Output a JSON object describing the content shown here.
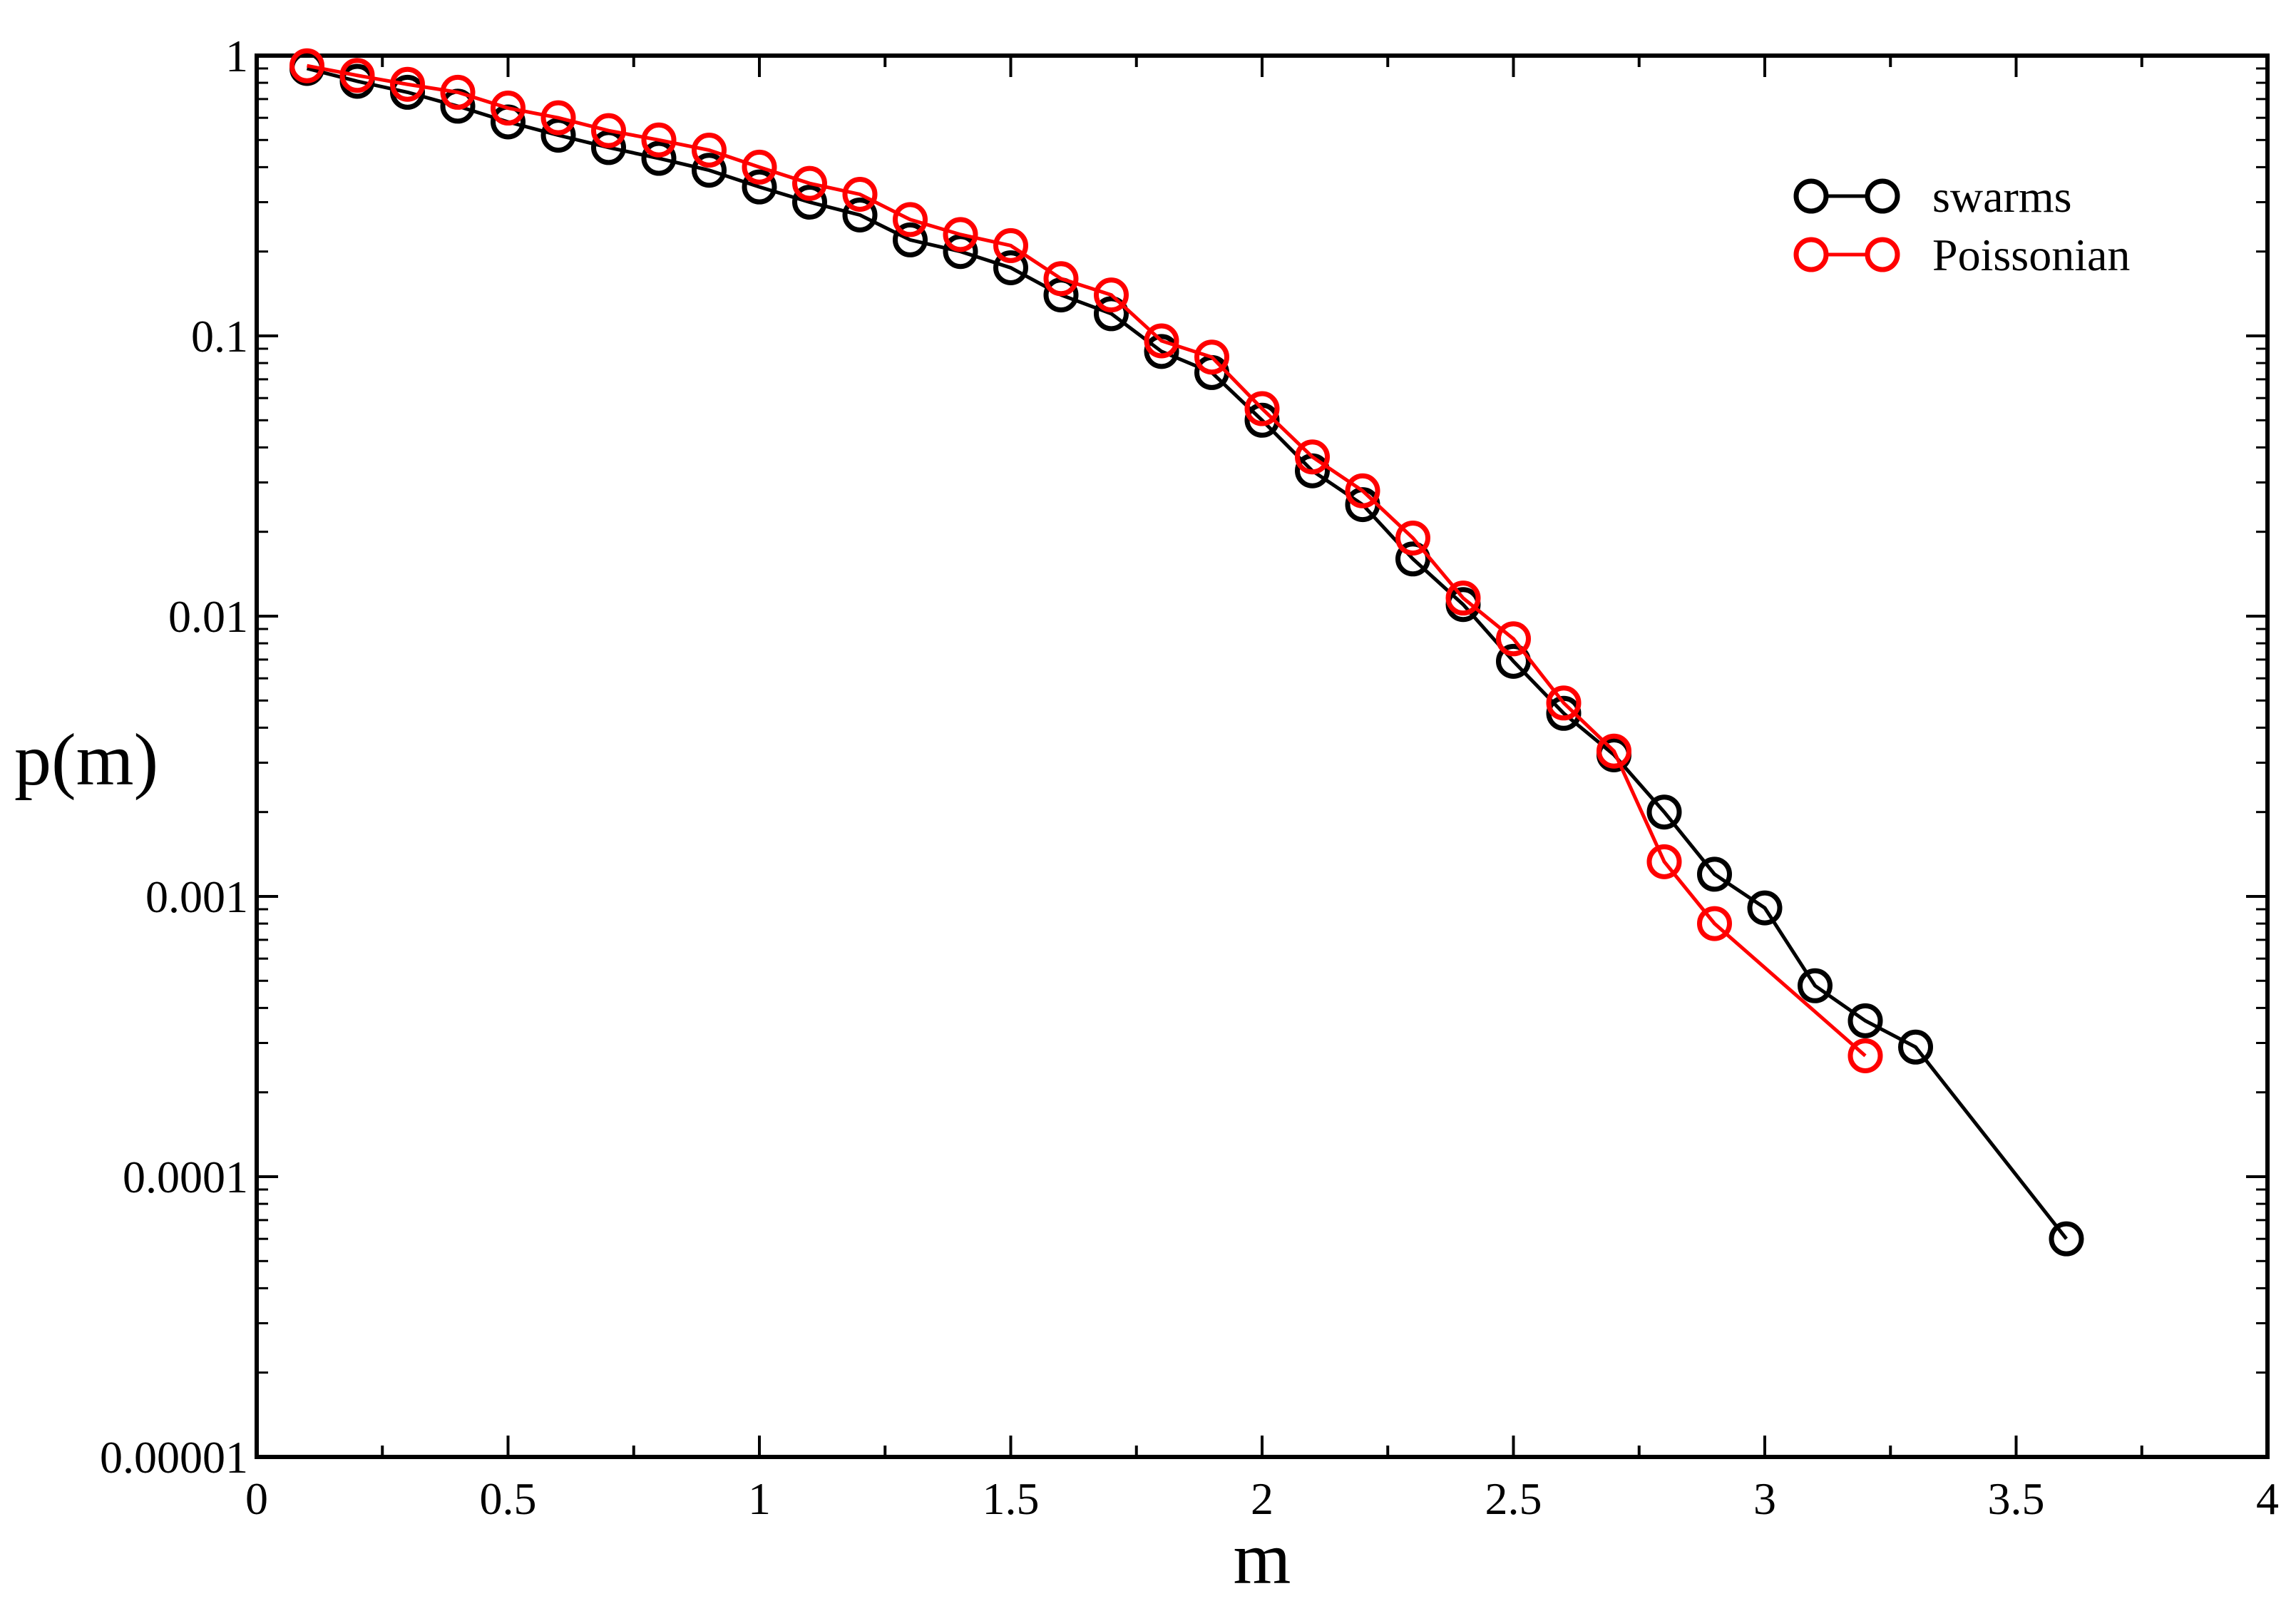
{
  "chart_data": {
    "type": "scatter",
    "title": "",
    "xlabel": "m",
    "ylabel": "p(m)",
    "xlim": [
      0,
      4
    ],
    "ylim": [
      1e-05,
      1
    ],
    "yscale": "log",
    "x_ticks": [
      "0",
      "0.5",
      "1",
      "1.5",
      "2",
      "2.5",
      "3",
      "3.5",
      "4"
    ],
    "x_tick_values": [
      0,
      0.5,
      1,
      1.5,
      2,
      2.5,
      3,
      3.5,
      4
    ],
    "y_ticks": [
      "1",
      "0.1",
      "0.01",
      "0.001",
      "0.0001",
      "0.00001"
    ],
    "y_tick_values": [
      1,
      0.1,
      0.01,
      0.001,
      0.0001,
      1e-05
    ],
    "grid": false,
    "legend_position": "top-right",
    "series": [
      {
        "name": "swarms",
        "color": "#000000",
        "marker": "open-circle",
        "points": [
          [
            0.1,
            0.9
          ],
          [
            0.2,
            0.81
          ],
          [
            0.3,
            0.74
          ],
          [
            0.4,
            0.66
          ],
          [
            0.5,
            0.58
          ],
          [
            0.6,
            0.52
          ],
          [
            0.7,
            0.47
          ],
          [
            0.8,
            0.43
          ],
          [
            0.9,
            0.39
          ],
          [
            1.0,
            0.34
          ],
          [
            1.1,
            0.3
          ],
          [
            1.2,
            0.27
          ],
          [
            1.3,
            0.22
          ],
          [
            1.4,
            0.2
          ],
          [
            1.5,
            0.175
          ],
          [
            1.6,
            0.14
          ],
          [
            1.7,
            0.12
          ],
          [
            1.8,
            0.088
          ],
          [
            1.9,
            0.074
          ],
          [
            2.0,
            0.05
          ],
          [
            2.1,
            0.033
          ],
          [
            2.2,
            0.025
          ],
          [
            2.3,
            0.016
          ],
          [
            2.4,
            0.011
          ],
          [
            2.5,
            0.0069
          ],
          [
            2.6,
            0.0045
          ],
          [
            2.7,
            0.0032
          ],
          [
            2.8,
            0.002
          ],
          [
            2.9,
            0.0012
          ],
          [
            3.0,
            0.00091
          ],
          [
            3.1,
            0.00048
          ],
          [
            3.2,
            0.00036
          ],
          [
            3.3,
            0.00029
          ],
          [
            3.6,
            6e-05
          ]
        ]
      },
      {
        "name": "Poissonian",
        "color": "#ff0000",
        "marker": "open-circle",
        "points": [
          [
            0.1,
            0.92
          ],
          [
            0.2,
            0.85
          ],
          [
            0.3,
            0.79
          ],
          [
            0.4,
            0.74
          ],
          [
            0.5,
            0.65
          ],
          [
            0.6,
            0.6
          ],
          [
            0.7,
            0.54
          ],
          [
            0.8,
            0.5
          ],
          [
            0.9,
            0.46
          ],
          [
            1.0,
            0.4
          ],
          [
            1.1,
            0.35
          ],
          [
            1.2,
            0.32
          ],
          [
            1.3,
            0.26
          ],
          [
            1.4,
            0.23
          ],
          [
            1.5,
            0.21
          ],
          [
            1.6,
            0.16
          ],
          [
            1.7,
            0.14
          ],
          [
            1.8,
            0.096
          ],
          [
            1.9,
            0.084
          ],
          [
            2.0,
            0.055
          ],
          [
            2.1,
            0.037
          ],
          [
            2.2,
            0.028
          ],
          [
            2.3,
            0.019
          ],
          [
            2.4,
            0.0116
          ],
          [
            2.5,
            0.0083
          ],
          [
            2.6,
            0.0049
          ],
          [
            2.7,
            0.0033
          ],
          [
            2.8,
            0.00133
          ],
          [
            2.9,
            0.0008
          ],
          [
            3.2,
            0.00027
          ]
        ]
      }
    ]
  }
}
